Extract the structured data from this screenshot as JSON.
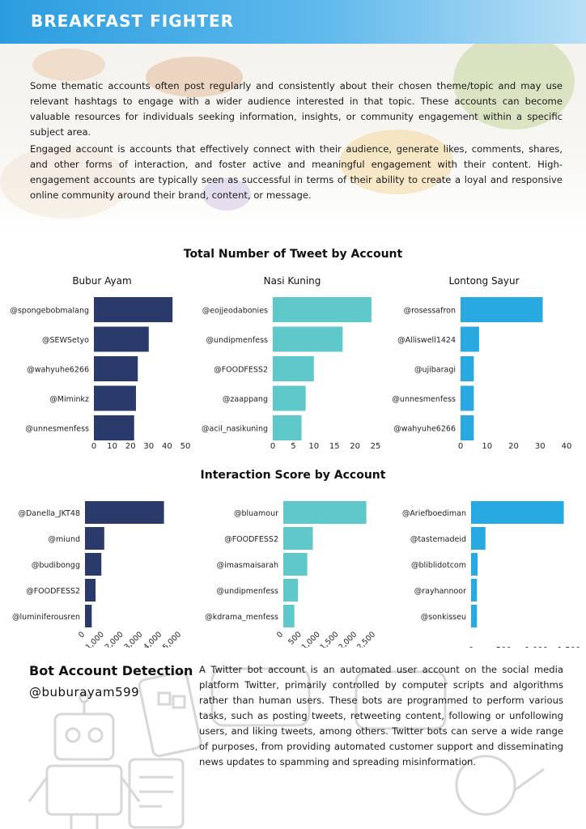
{
  "header": {
    "title": "BREAKFAST FIGHTER",
    "accent": "#2b9ddf"
  },
  "intro": {
    "p1": "Some thematic accounts often post regularly and consistently about their chosen theme/topic and may use relevant hashtags to engage with a wider audience interested in that topic. These accounts can become valuable resources for individuals seeking information, insights, or community engagement within a specific subject area.",
    "p2": "Engaged account is accounts that effectively connect with their audience, generate likes, comments, shares, and other forms of interaction, and foster active and meaningful engagement with their content. High-engagement accounts are typically seen as successful in terms of their ability to create a loyal and responsive online community around their brand, content, or message."
  },
  "section_tweets": {
    "title": "Total Number of Tweet by Account"
  },
  "section_interaction": {
    "title": "Interaction Score by Account"
  },
  "bot": {
    "title": "Bot Account Detection",
    "handle": "@buburayam599",
    "text": "A Twitter bot account is an automated user account on the social media platform Twitter, primarily controlled by computer scripts and algorithms rather than human users. These bots are programmed to perform various tasks, such as posting tweets, retweeting content, following or unfollowing users, and liking tweets, among others. Twitter bots can serve a wide range of purposes, from providing automated customer support and disseminating news updates to spamming and spreading misinformation."
  },
  "chart_data": [
    {
      "type": "bar",
      "orientation": "horizontal",
      "title": "Bubur Ayam",
      "color": "#2a3a6b",
      "categories": [
        "@spongebobmalang",
        "@SEWSetyo",
        "@wahyuhe6266",
        "@Miminkz",
        "@unnesmenfess"
      ],
      "values": [
        43,
        30,
        24,
        23,
        22
      ],
      "xlim": [
        0,
        50
      ],
      "xticks": [
        "0",
        "10",
        "20",
        "30",
        "40",
        "50"
      ],
      "tick_values": [
        0,
        10,
        20,
        30,
        40,
        50
      ]
    },
    {
      "type": "bar",
      "orientation": "horizontal",
      "title": "Nasi Kuning",
      "color": "#5fc8cb",
      "categories": [
        "@eojjeodabonies",
        "@undipmenfess",
        "@FOODFESS2",
        "@zaappang",
        "@acil_nasikuning"
      ],
      "values": [
        24,
        17,
        10,
        8,
        7
      ],
      "xlim": [
        0,
        25
      ],
      "xticks": [
        "0",
        "5",
        "10",
        "15",
        "20",
        "25"
      ],
      "tick_values": [
        0,
        5,
        10,
        15,
        20,
        25
      ]
    },
    {
      "type": "bar",
      "orientation": "horizontal",
      "title": "Lontong Sayur",
      "color": "#29a9e1",
      "categories": [
        "@rosessafron",
        "@Alliswell1424",
        "@ujibaragi",
        "@unnesmenfess",
        "@wahyuhe6266"
      ],
      "values": [
        31,
        7,
        5,
        5,
        5
      ],
      "xlim": [
        0,
        40
      ],
      "xticks": [
        "0",
        "10",
        "20",
        "30",
        "40"
      ],
      "tick_values": [
        0,
        10,
        20,
        30,
        40
      ]
    },
    {
      "type": "bar",
      "orientation": "horizontal",
      "title": "",
      "color": "#2a3a6b",
      "categories": [
        "@Danella_JKT48",
        "@miund",
        "@budibongg",
        "@FOODFESS2",
        "@luminiferousren"
      ],
      "values": [
        4100,
        1000,
        850,
        550,
        350
      ],
      "xlim": [
        0,
        5000
      ],
      "xticks": [
        "0",
        "1,000",
        "2,000",
        "3,000",
        "4,000",
        "5,000"
      ],
      "tick_values": [
        0,
        1000,
        2000,
        3000,
        4000,
        5000
      ],
      "rotated_ticks": true
    },
    {
      "type": "bar",
      "orientation": "horizontal",
      "title": "",
      "color": "#5fc8cb",
      "categories": [
        "@bluamour",
        "@FOODFESS2",
        "@imasmaisarah",
        "@undipmenfess",
        "@kdrama_menfess"
      ],
      "values": [
        2250,
        800,
        650,
        400,
        300
      ],
      "xlim": [
        0,
        2500
      ],
      "xticks": [
        "0",
        "500",
        "1,000",
        "1,500",
        "2,000",
        "2,500"
      ],
      "tick_values": [
        0,
        500,
        1000,
        1500,
        2000,
        2500
      ],
      "rotated_ticks": true
    },
    {
      "type": "bar",
      "orientation": "horizontal",
      "title": "",
      "color": "#29a9e1",
      "categories": [
        "@Ariefboediman",
        "@tastemadeid",
        "@bliblidotcom",
        "@rayhannoor",
        "@sonkisseu"
      ],
      "values": [
        1420,
        220,
        100,
        90,
        90
      ],
      "xlim": [
        0,
        1500
      ],
      "xticks": [
        "0",
        "500",
        "1,000",
        "1,500"
      ],
      "tick_values": [
        0,
        500,
        1000,
        1500
      ]
    }
  ]
}
